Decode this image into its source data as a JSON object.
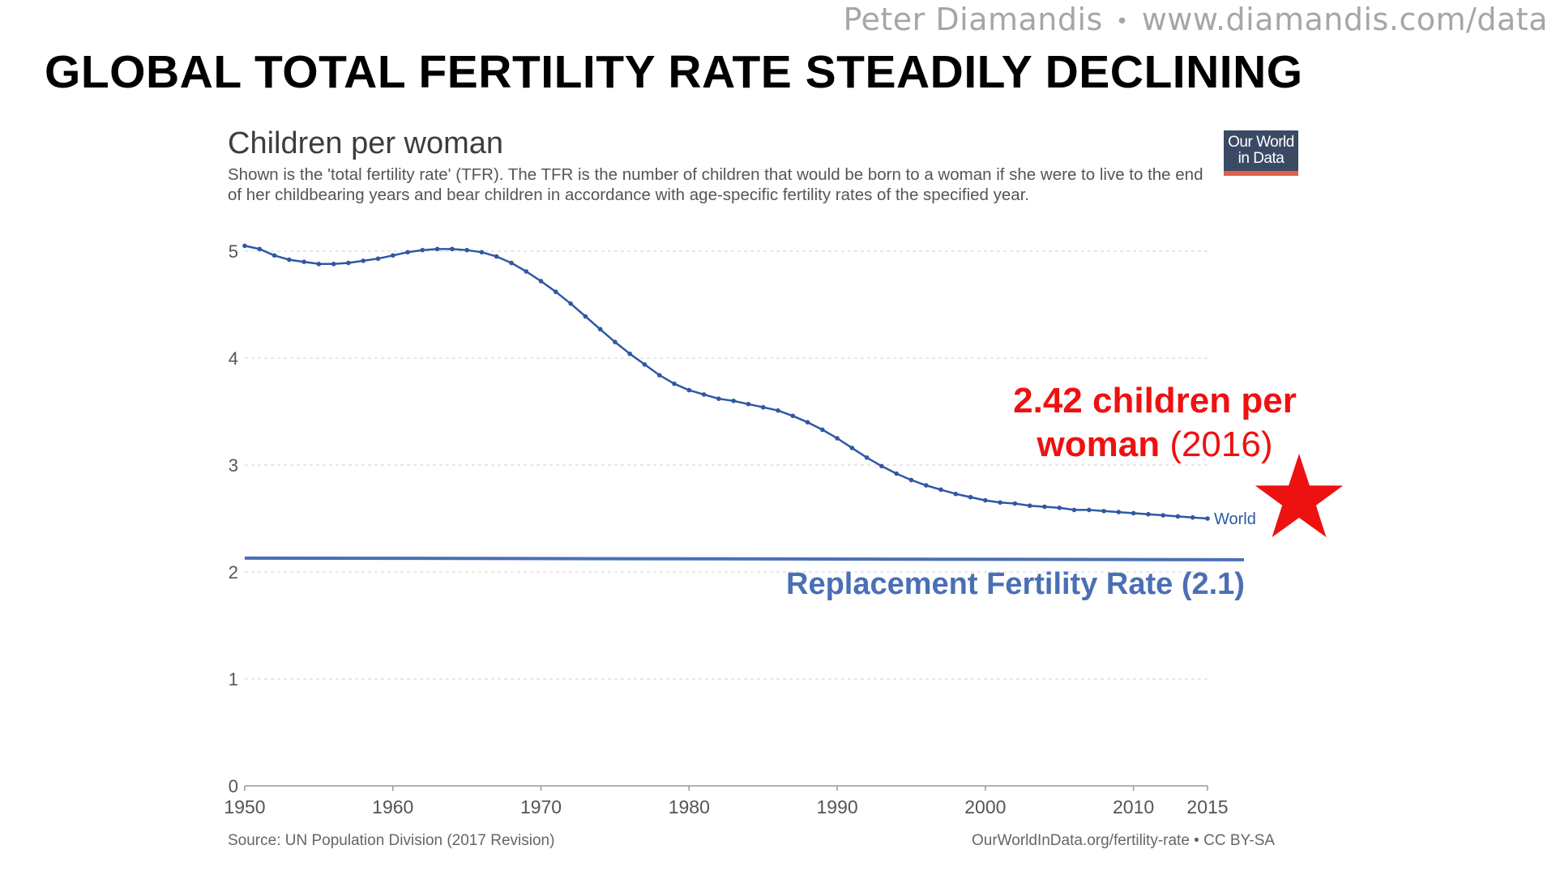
{
  "header": {
    "author": "Peter Diamandis",
    "separator": "•",
    "url": "www.diamandis.com/data"
  },
  "slide_title": "GLOBAL TOTAL FERTILITY RATE STEADILY DECLINING",
  "logo": {
    "line1": "Our World",
    "line2": "in Data"
  },
  "callout": {
    "main": "2.42 children per",
    "word": "woman",
    "year": "(2016)"
  },
  "replacement_label": "Replacement Fertility Rate (2.1)",
  "colors": {
    "series": "#2f58a3",
    "replacement_line": "#4a6fb5",
    "callout": "#ee1111",
    "star": "#ee1111",
    "grid": "#d9d9d9"
  },
  "chart_data": {
    "type": "line",
    "title": "Children per woman",
    "subtitle": "Shown is the 'total fertility rate' (TFR). The TFR is the number of children that would be born to a woman if she were to live to the end of her childbearing years and bear children in accordance with age-specific fertility rates of the specified year.",
    "xlabel": "",
    "ylabel": "",
    "xlim": [
      1950,
      2015
    ],
    "ylim": [
      0,
      5
    ],
    "x_ticks": [
      "1950",
      "1960",
      "1970",
      "1980",
      "1990",
      "2000",
      "2010",
      "2015"
    ],
    "y_ticks": [
      "0",
      "1",
      "2",
      "3",
      "4",
      "5"
    ],
    "grid": true,
    "series": [
      {
        "name": "World",
        "x": [
          1950,
          1951,
          1952,
          1953,
          1954,
          1955,
          1956,
          1957,
          1958,
          1959,
          1960,
          1961,
          1962,
          1963,
          1964,
          1965,
          1966,
          1967,
          1968,
          1969,
          1970,
          1971,
          1972,
          1973,
          1974,
          1975,
          1976,
          1977,
          1978,
          1979,
          1980,
          1981,
          1982,
          1983,
          1984,
          1985,
          1986,
          1987,
          1988,
          1989,
          1990,
          1991,
          1992,
          1993,
          1994,
          1995,
          1996,
          1997,
          1998,
          1999,
          2000,
          2001,
          2002,
          2003,
          2004,
          2005,
          2006,
          2007,
          2008,
          2009,
          2010,
          2011,
          2012,
          2013,
          2014,
          2015
        ],
        "values": [
          5.05,
          5.02,
          4.96,
          4.92,
          4.9,
          4.88,
          4.88,
          4.89,
          4.91,
          4.93,
          4.96,
          4.99,
          5.01,
          5.02,
          5.02,
          5.01,
          4.99,
          4.95,
          4.89,
          4.81,
          4.72,
          4.62,
          4.51,
          4.39,
          4.27,
          4.15,
          4.04,
          3.94,
          3.84,
          3.76,
          3.7,
          3.66,
          3.62,
          3.6,
          3.57,
          3.54,
          3.51,
          3.46,
          3.4,
          3.33,
          3.25,
          3.16,
          3.07,
          2.99,
          2.92,
          2.86,
          2.81,
          2.77,
          2.73,
          2.7,
          2.67,
          2.65,
          2.64,
          2.62,
          2.61,
          2.6,
          2.58,
          2.58,
          2.57,
          2.56,
          2.55,
          2.54,
          2.53,
          2.52,
          2.51,
          2.5
        ]
      }
    ],
    "reference_line": {
      "name": "Replacement Fertility Rate (2.1)",
      "value": 2.13
    },
    "end_label": "World",
    "source": "Source: UN Population Division (2017 Revision)",
    "license": "OurWorldInData.org/fertility-rate • CC BY-SA"
  }
}
